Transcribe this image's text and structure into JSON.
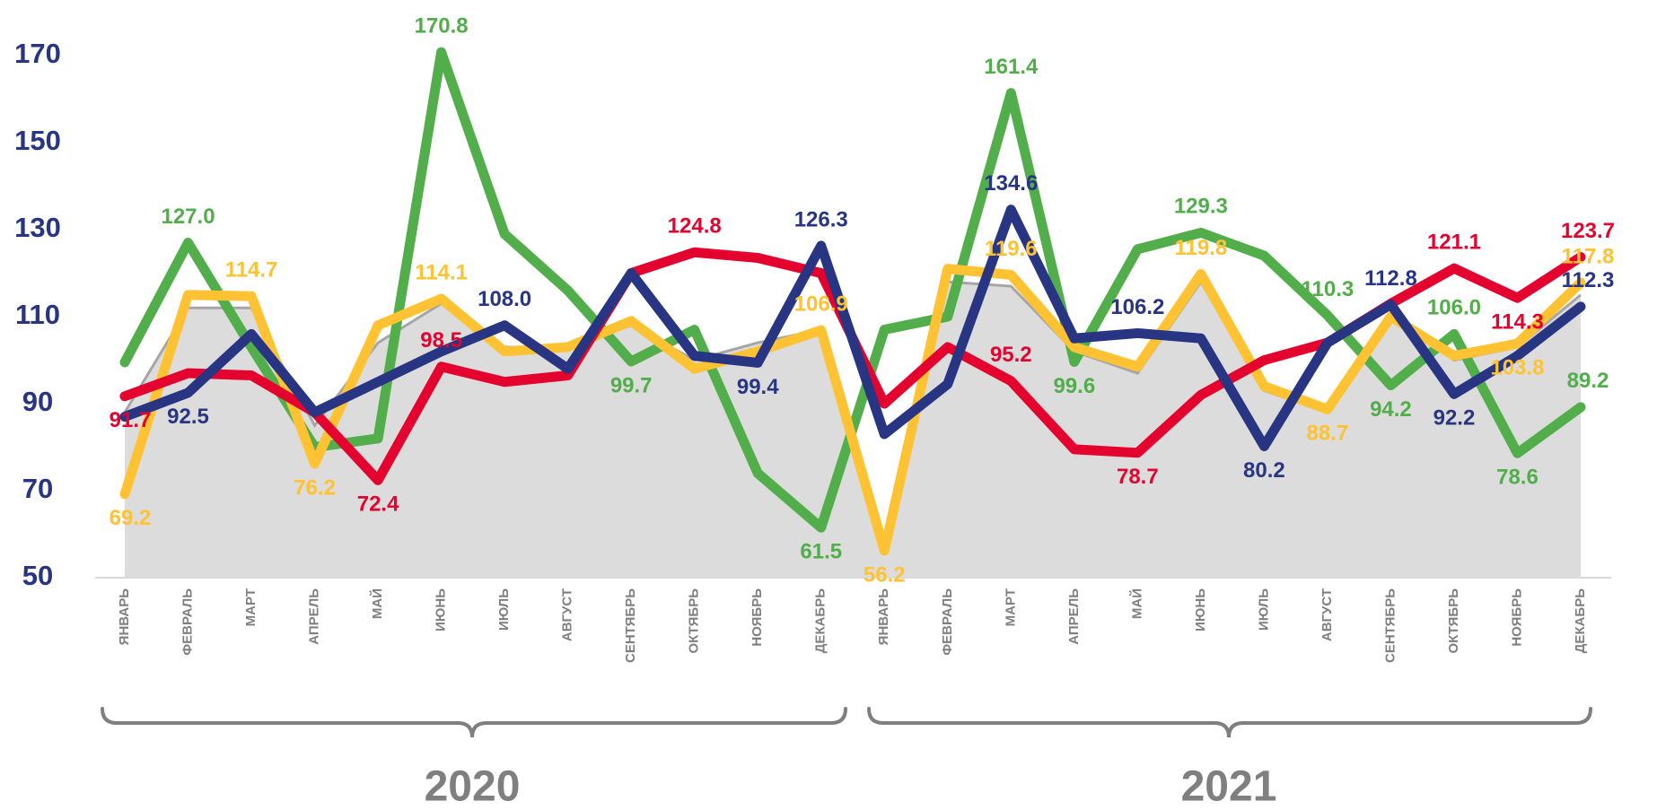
{
  "chart_data": {
    "type": "line",
    "categories": [
      "ЯНВАРЬ",
      "ФЕВРАЛЬ",
      "МАРТ",
      "АПРЕЛЬ",
      "МАЙ",
      "ИЮНЬ",
      "ИЮЛЬ",
      "АВГУСТ",
      "СЕНТЯБРЬ",
      "ОКТЯБРЬ",
      "НОЯБРЬ",
      "ДЕКАБРЬ",
      "ЯНВАРЬ",
      "ФЕВРАЛЬ",
      "МАРТ",
      "АПРЕЛЬ",
      "МАЙ",
      "ИЮНЬ",
      "ИЮЛЬ",
      "АВГУСТ",
      "СЕНТЯБРЬ",
      "ОКТЯБРЬ",
      "НОЯБРЬ",
      "ДЕКАБРЬ"
    ],
    "category_groups": [
      "2020",
      "2021"
    ],
    "ylim": [
      50,
      170
    ],
    "yticks": [
      50,
      70,
      90,
      110,
      130,
      150,
      170
    ],
    "series": [
      {
        "color": "#dcdcdc",
        "fill": true,
        "values": [
          88,
          112,
          112,
          85,
          104,
          113,
          103,
          103,
          108,
          100,
          104,
          107,
          57,
          118,
          117,
          102,
          97,
          118,
          93,
          88,
          110,
          100,
          103,
          115
        ]
      },
      {
        "color": "#52ae4a",
        "values": [
          99.5,
          127.0,
          103,
          80,
          82,
          170.8,
          129,
          116,
          99.7,
          107,
          74,
          61.5,
          107,
          110,
          161.4,
          99.6,
          125.5,
          129.3,
          124,
          110.3,
          94.2,
          106.0,
          78.6,
          89.2
        ],
        "value_labels": [
          null,
          "127.0",
          null,
          null,
          null,
          "170.8",
          null,
          null,
          "99.7",
          null,
          null,
          "61.5",
          null,
          null,
          "161.4",
          "99.6",
          null,
          "129.3",
          null,
          "110.3",
          "94.2",
          "106.0",
          "78.6",
          "89.2"
        ]
      },
      {
        "color": "#ffc232",
        "values": [
          69.2,
          115,
          114.7,
          76.2,
          108,
          114.1,
          102,
          103,
          109,
          98,
          102,
          106.9,
          56.2,
          121,
          119.6,
          103,
          98.5,
          119.8,
          94,
          88.7,
          110,
          101,
          103.8,
          117.8
        ],
        "value_labels": [
          "69.2",
          null,
          "114.7",
          "76.2",
          null,
          "114.1",
          null,
          null,
          null,
          null,
          null,
          "106.9",
          "56.2",
          null,
          "119.6",
          null,
          null,
          "119.8",
          null,
          "88.7",
          null,
          null,
          "103.8",
          "117.8"
        ]
      },
      {
        "color": "#e4032e",
        "values": [
          91.7,
          97,
          96.5,
          88,
          72.4,
          98.5,
          95,
          96.5,
          120,
          124.8,
          123.5,
          120,
          90,
          103,
          95.2,
          79.5,
          78.7,
          92,
          100,
          104,
          113,
          121.1,
          114.3,
          123.7
        ],
        "value_labels": [
          "91.7",
          null,
          null,
          null,
          "72.4",
          "98.5",
          null,
          null,
          null,
          "124.8",
          null,
          null,
          null,
          null,
          "95.2",
          null,
          "78.7",
          null,
          null,
          null,
          null,
          "121.1",
          "114.3",
          "123.7"
        ]
      },
      {
        "color": "#283583",
        "values": [
          87,
          92.5,
          106,
          88,
          95,
          102,
          108.0,
          98,
          120,
          101,
          99.4,
          126.3,
          83,
          94.5,
          134.6,
          105,
          106.2,
          105,
          80.2,
          104,
          112.8,
          92.2,
          101,
          112.3
        ],
        "value_labels": [
          null,
          "92.5",
          null,
          null,
          null,
          null,
          "108.0",
          null,
          null,
          null,
          "99.4",
          "126.3",
          null,
          null,
          "134.6",
          null,
          "106.2",
          null,
          "80.2",
          null,
          "112.8",
          "92.2",
          null,
          "112.3"
        ]
      }
    ]
  }
}
